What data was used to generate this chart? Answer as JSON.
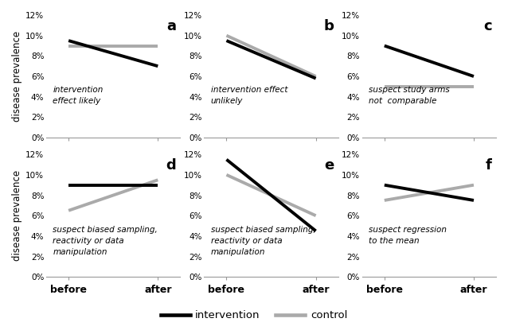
{
  "subplots": [
    {
      "label": "a",
      "annotation": "intervention\neffect likely",
      "intervention": [
        9.5,
        7.0
      ],
      "control": [
        9.0,
        9.0
      ]
    },
    {
      "label": "b",
      "annotation": "intervention effect\nunlikely",
      "intervention": [
        9.5,
        5.8
      ],
      "control": [
        10.0,
        6.0
      ]
    },
    {
      "label": "c",
      "annotation": "suspect study arms\nnot  comparable",
      "intervention": [
        9.0,
        6.0
      ],
      "control": [
        5.0,
        5.0
      ]
    },
    {
      "label": "d",
      "annotation": "suspect biased sampling,\nreactivity or data\nmanipulation",
      "intervention": [
        9.0,
        9.0
      ],
      "control": [
        6.5,
        9.5
      ]
    },
    {
      "label": "e",
      "annotation": "suspect biased sampling,\nreactivity or data\nmanipulation",
      "intervention": [
        11.5,
        4.5
      ],
      "control": [
        10.0,
        6.0
      ]
    },
    {
      "label": "f",
      "annotation": "suspect regression\nto the mean",
      "intervention": [
        9.0,
        7.5
      ],
      "control": [
        7.5,
        9.0
      ]
    }
  ],
  "intervention_color": "#000000",
  "control_color": "#aaaaaa",
  "line_width": 2.8,
  "ylabel": "disease prevalence",
  "xlabel_before": "before",
  "xlabel_after": "after",
  "yticks": [
    0,
    2,
    4,
    6,
    8,
    10,
    12
  ],
  "ylim": [
    0,
    12
  ],
  "annotation_fontsize": 7.5,
  "label_fontsize": 13,
  "legend_intervention": "intervention",
  "legend_control": "control"
}
